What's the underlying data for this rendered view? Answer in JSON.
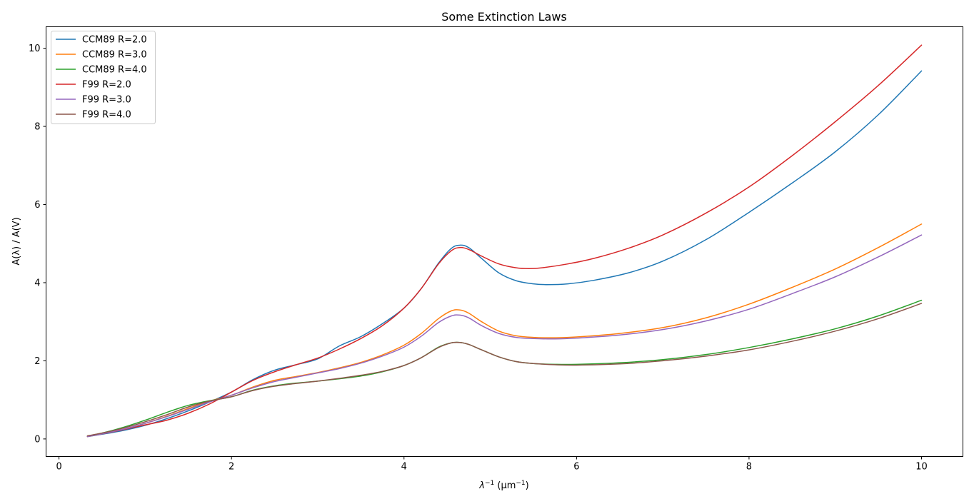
{
  "chart_data": {
    "type": "line",
    "title": "Some Extinction Laws",
    "xlabel_pre": "λ",
    "xlabel_sup1": "−1",
    "xlabel_mid": " (μm",
    "xlabel_sup2": "−1",
    "xlabel_post": ")",
    "ylabel": "A(λ) / A(V)",
    "xlim": [
      -0.15,
      10.48
    ],
    "ylim": [
      -0.45,
      10.55
    ],
    "xticks": [
      0,
      2,
      4,
      6,
      8,
      10
    ],
    "yticks": [
      0,
      2,
      4,
      6,
      8,
      10
    ],
    "x_tick_labels": [
      "0",
      "2",
      "4",
      "6",
      "8",
      "10"
    ],
    "y_tick_labels": [
      "0",
      "2",
      "4",
      "6",
      "8",
      "10"
    ],
    "legend_location": "top-left",
    "series": [
      {
        "name": "CCM89 R=2.0",
        "color": "#1f77b4",
        "x": [
          0.33,
          0.5,
          0.75,
          1.0,
          1.25,
          1.5,
          1.75,
          2.0,
          2.25,
          2.5,
          2.75,
          3.0,
          3.25,
          3.5,
          3.75,
          4.0,
          4.2,
          4.4,
          4.55,
          4.65,
          4.75,
          4.9,
          5.1,
          5.3,
          5.5,
          5.65,
          5.9,
          6.2,
          6.6,
          7.0,
          7.5,
          8.0,
          8.5,
          9.0,
          9.5,
          10.0
        ],
        "y": [
          0.06,
          0.12,
          0.22,
          0.35,
          0.52,
          0.72,
          0.95,
          1.2,
          1.52,
          1.76,
          1.9,
          2.05,
          2.38,
          2.62,
          2.95,
          3.35,
          3.85,
          4.5,
          4.88,
          4.96,
          4.9,
          4.62,
          4.25,
          4.05,
          3.97,
          3.95,
          3.97,
          4.06,
          4.25,
          4.55,
          5.1,
          5.8,
          6.55,
          7.35,
          8.3,
          9.42
        ]
      },
      {
        "name": "CCM89 R=3.0",
        "color": "#ff7f0e",
        "x": [
          0.33,
          0.5,
          0.75,
          1.0,
          1.25,
          1.5,
          1.75,
          2.0,
          2.25,
          2.5,
          2.75,
          3.0,
          3.25,
          3.5,
          3.75,
          4.0,
          4.2,
          4.4,
          4.55,
          4.65,
          4.75,
          4.9,
          5.1,
          5.3,
          5.5,
          5.75,
          6.0,
          6.5,
          7.0,
          7.5,
          8.0,
          8.5,
          9.0,
          9.5,
          10.0
        ],
        "y": [
          0.06,
          0.13,
          0.25,
          0.4,
          0.58,
          0.78,
          0.97,
          1.12,
          1.33,
          1.5,
          1.6,
          1.7,
          1.82,
          1.96,
          2.15,
          2.4,
          2.7,
          3.08,
          3.28,
          3.3,
          3.22,
          3.0,
          2.76,
          2.64,
          2.6,
          2.59,
          2.61,
          2.7,
          2.85,
          3.1,
          3.45,
          3.88,
          4.35,
          4.9,
          5.5
        ]
      },
      {
        "name": "CCM89 R=4.0",
        "color": "#2ca02c",
        "x": [
          0.33,
          0.5,
          0.75,
          1.0,
          1.25,
          1.5,
          1.75,
          2.0,
          2.25,
          2.5,
          2.75,
          3.0,
          3.25,
          3.5,
          3.75,
          4.0,
          4.2,
          4.4,
          4.55,
          4.65,
          4.75,
          4.9,
          5.1,
          5.3,
          5.5,
          5.75,
          6.0,
          6.5,
          7.0,
          7.5,
          8.0,
          8.5,
          9.0,
          9.5,
          10.0
        ],
        "y": [
          0.07,
          0.15,
          0.3,
          0.48,
          0.68,
          0.86,
          0.98,
          1.08,
          1.25,
          1.36,
          1.43,
          1.48,
          1.54,
          1.61,
          1.72,
          1.88,
          2.08,
          2.35,
          2.46,
          2.47,
          2.42,
          2.28,
          2.1,
          1.98,
          1.93,
          1.91,
          1.91,
          1.95,
          2.03,
          2.16,
          2.34,
          2.56,
          2.82,
          3.15,
          3.55
        ]
      },
      {
        "name": "F99 R=2.0",
        "color": "#d62728",
        "x": [
          0.33,
          0.5,
          0.75,
          1.0,
          1.25,
          1.5,
          1.75,
          2.0,
          2.25,
          2.5,
          2.75,
          3.0,
          3.25,
          3.5,
          3.75,
          4.0,
          4.2,
          4.4,
          4.55,
          4.65,
          4.75,
          4.9,
          5.1,
          5.3,
          5.45,
          5.6,
          5.9,
          6.2,
          6.6,
          7.0,
          7.5,
          8.0,
          8.5,
          9.0,
          9.5,
          10.0
        ],
        "y": [
          0.07,
          0.13,
          0.24,
          0.36,
          0.48,
          0.66,
          0.9,
          1.2,
          1.5,
          1.72,
          1.9,
          2.07,
          2.3,
          2.57,
          2.9,
          3.35,
          3.85,
          4.48,
          4.82,
          4.9,
          4.85,
          4.68,
          4.48,
          4.38,
          4.36,
          4.38,
          4.48,
          4.62,
          4.88,
          5.22,
          5.78,
          6.45,
          7.25,
          8.12,
          9.05,
          10.08
        ]
      },
      {
        "name": "F99 R=3.0",
        "color": "#9467bd",
        "x": [
          0.33,
          0.5,
          0.75,
          1.0,
          1.25,
          1.5,
          1.75,
          2.0,
          2.25,
          2.5,
          2.75,
          3.0,
          3.25,
          3.5,
          3.75,
          4.0,
          4.2,
          4.4,
          4.55,
          4.65,
          4.75,
          4.9,
          5.1,
          5.3,
          5.5,
          5.75,
          6.0,
          6.5,
          7.0,
          7.5,
          8.0,
          8.5,
          9.0,
          9.5,
          10.0
        ],
        "y": [
          0.06,
          0.13,
          0.25,
          0.4,
          0.57,
          0.76,
          0.95,
          1.12,
          1.31,
          1.47,
          1.58,
          1.69,
          1.8,
          1.94,
          2.12,
          2.35,
          2.63,
          2.98,
          3.15,
          3.17,
          3.1,
          2.9,
          2.7,
          2.6,
          2.57,
          2.56,
          2.58,
          2.66,
          2.8,
          3.02,
          3.32,
          3.72,
          4.15,
          4.66,
          5.22
        ]
      },
      {
        "name": "F99 R=4.0",
        "color": "#8c564b",
        "x": [
          0.33,
          0.5,
          0.75,
          1.0,
          1.25,
          1.5,
          1.75,
          2.0,
          2.25,
          2.5,
          2.75,
          3.0,
          3.25,
          3.5,
          3.75,
          4.0,
          4.2,
          4.4,
          4.55,
          4.65,
          4.75,
          4.9,
          5.1,
          5.3,
          5.5,
          5.75,
          6.0,
          6.5,
          7.0,
          7.5,
          8.0,
          8.5,
          9.0,
          9.5,
          10.0
        ],
        "y": [
          0.08,
          0.15,
          0.28,
          0.44,
          0.62,
          0.82,
          0.97,
          1.08,
          1.24,
          1.35,
          1.42,
          1.48,
          1.55,
          1.63,
          1.73,
          1.88,
          2.08,
          2.34,
          2.46,
          2.47,
          2.42,
          2.28,
          2.1,
          1.98,
          1.93,
          1.9,
          1.89,
          1.92,
          2.0,
          2.12,
          2.28,
          2.5,
          2.76,
          3.08,
          3.47
        ]
      }
    ]
  }
}
